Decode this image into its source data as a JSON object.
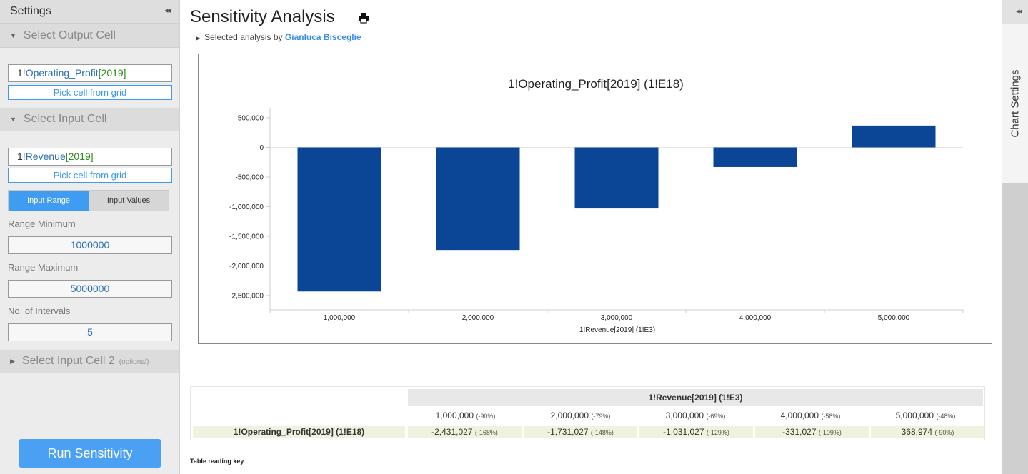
{
  "sidebar": {
    "title": "Settings",
    "collapse_glyph": "◂◂",
    "output_section": {
      "label": "Select Output Cell",
      "sheet": "1!",
      "name": "Operating_Profit",
      "year": "[2019]",
      "pick_label": "Pick cell from grid"
    },
    "input_section": {
      "label": "Select Input Cell",
      "sheet": "1!",
      "name": "Revenue",
      "year": "[2019]",
      "pick_label": "Pick cell from grid"
    },
    "toggle": {
      "range_label": "Input Range",
      "values_label": "Input Values",
      "selected": "Input Range"
    },
    "range_min": {
      "label": "Range Minimum",
      "value": "1000000"
    },
    "range_max": {
      "label": "Range Maximum",
      "value": "5000000"
    },
    "intervals": {
      "label": "No. of Intervals",
      "value": "5"
    },
    "input2_section": {
      "label": "Select Input Cell 2",
      "optional": "(optional)"
    },
    "run_label": "Run Sensitivity"
  },
  "right_panel": {
    "tab_label": "Chart Settings",
    "collapse_glyph": "◂◂"
  },
  "header": {
    "title": "Sensitivity Analysis",
    "subtitle_prefix": "Selected analysis by",
    "author": "Gianluca Bisceglie"
  },
  "chart_data": {
    "type": "bar",
    "title": "1!Operating_Profit[2019] (1!E18)",
    "xlabel": "1!Revenue[2019] (1!E3)",
    "ylabel": "",
    "categories": [
      "1,000,000",
      "2,000,000",
      "3,000,000",
      "4,000,000",
      "5,000,000"
    ],
    "values": [
      -2431027,
      -1731027,
      -1031027,
      -331027,
      368974
    ],
    "yticks": [
      "500,000",
      "0",
      "-500,000",
      "-1,000,000",
      "-1,500,000",
      "-2,000,000",
      "-2,500,000"
    ],
    "ylim": [
      -2750000,
      750000
    ],
    "color": "#0b4596"
  },
  "table": {
    "header": "1!Revenue[2019] (1!E3)",
    "columns": [
      {
        "value": "1,000,000",
        "pct": "(-90%)"
      },
      {
        "value": "2,000,000",
        "pct": "(-79%)"
      },
      {
        "value": "3,000,000",
        "pct": "(-69%)"
      },
      {
        "value": "4,000,000",
        "pct": "(-58%)"
      },
      {
        "value": "5,000,000",
        "pct": "(-48%)"
      }
    ],
    "row_label": "1!Operating_Profit[2019] (1!E18)",
    "cells": [
      {
        "value": "-2,431,027",
        "pct": "(-168%)"
      },
      {
        "value": "-1,731,027",
        "pct": "(-148%)"
      },
      {
        "value": "-1,031,027",
        "pct": "(-129%)"
      },
      {
        "value": "-331,027",
        "pct": "(-109%)"
      },
      {
        "value": "368,974",
        "pct": "(-90%)"
      }
    ]
  },
  "reading_key": "Table reading key"
}
